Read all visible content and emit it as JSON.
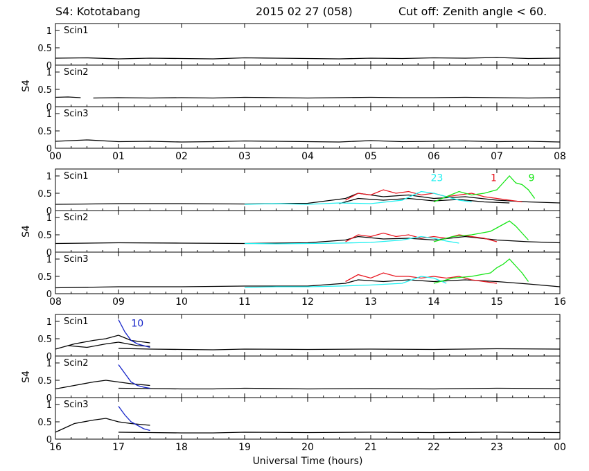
{
  "header": {
    "station": "S4: Kototabang",
    "date": "2015 02 27 (058)",
    "cutoff": "Cut off: Zenith angle < 60."
  },
  "chart_data": {
    "type": "line",
    "title": "S4: Kototabang",
    "ylabel": "S4",
    "xlabel": "Universal Time (hours)",
    "ylim": [
      0,
      1.2
    ],
    "yticks": [
      0,
      0.5,
      1
    ],
    "ytick_labels": [
      "0",
      "0.5",
      "1"
    ],
    "colors": {
      "black": "#000000",
      "red": "#e8141e",
      "green": "#14e614",
      "cyan": "#1ef0f0",
      "blue": "#1423c8"
    },
    "groups": [
      {
        "xrange": [
          0,
          8
        ],
        "xtick_labels": [
          "00",
          "01",
          "02",
          "03",
          "04",
          "05",
          "06",
          "07",
          "08"
        ],
        "panels": [
          {
            "name": "Scin1",
            "series": [
              {
                "color": "black",
                "x": [
                  0,
                  0.5,
                  1,
                  1.5,
                  2,
                  2.5,
                  3,
                  3.5,
                  4,
                  4.5,
                  5,
                  5.5,
                  6,
                  6.5,
                  7,
                  7.5,
                  8
                ],
                "y": [
                  0.2,
                  0.21,
                  0.18,
                  0.2,
                  0.19,
                  0.18,
                  0.21,
                  0.2,
                  0.19,
                  0.18,
                  0.2,
                  0.19,
                  0.21,
                  0.2,
                  0.22,
                  0.19,
                  0.2
                ]
              }
            ]
          },
          {
            "name": "Scin2",
            "series": [
              {
                "color": "black",
                "x": [
                  0,
                  0.2,
                  0.4
                ],
                "y": [
                  0.27,
                  0.28,
                  0.26
                ]
              },
              {
                "color": "black",
                "x": [
                  0.6,
                  1,
                  1.5,
                  2,
                  2.5,
                  3,
                  3.5,
                  4,
                  4.5,
                  5,
                  5.5,
                  6,
                  6.5,
                  7,
                  7.5,
                  8
                ],
                "y": [
                  0.25,
                  0.26,
                  0.25,
                  0.26,
                  0.25,
                  0.27,
                  0.26,
                  0.25,
                  0.26,
                  0.27,
                  0.26,
                  0.26,
                  0.27,
                  0.26,
                  0.25,
                  0.26
                ]
              }
            ]
          },
          {
            "name": "Scin3",
            "series": [
              {
                "color": "black",
                "x": [
                  0,
                  0.5,
                  1,
                  1.5,
                  2,
                  2.5,
                  3,
                  3.5,
                  4,
                  4.5,
                  5,
                  5.5,
                  6,
                  6.5,
                  7,
                  7.5,
                  8
                ],
                "y": [
                  0.2,
                  0.24,
                  0.19,
                  0.2,
                  0.18,
                  0.19,
                  0.21,
                  0.2,
                  0.19,
                  0.18,
                  0.22,
                  0.19,
                  0.2,
                  0.21,
                  0.19,
                  0.2,
                  0.18
                ]
              }
            ]
          }
        ],
        "annotations": []
      },
      {
        "xrange": [
          8,
          16
        ],
        "xtick_labels": [
          "08",
          "09",
          "10",
          "11",
          "12",
          "13",
          "14",
          "15",
          "16"
        ],
        "panels": [
          {
            "name": "Scin1",
            "series": [
              {
                "color": "black",
                "x": [
                  8,
                  9,
                  10,
                  11,
                  12,
                  12.6,
                  12.8,
                  13.2,
                  13.6,
                  14,
                  14.5,
                  15,
                  15.5,
                  16
                ],
                "y": [
                  0.18,
                  0.2,
                  0.2,
                  0.19,
                  0.21,
                  0.35,
                  0.5,
                  0.4,
                  0.45,
                  0.35,
                  0.4,
                  0.3,
                  0.25,
                  0.22
                ]
              },
              {
                "color": "black",
                "x": [
                  12.5,
                  12.8,
                  13.2,
                  13.6,
                  14,
                  14.4,
                  14.8,
                  15.2
                ],
                "y": [
                  0.2,
                  0.35,
                  0.3,
                  0.35,
                  0.28,
                  0.32,
                  0.25,
                  0.22
                ]
              },
              {
                "color": "red",
                "x": [
                  12.6,
                  12.8,
                  13,
                  13.2,
                  13.4,
                  13.6,
                  13.8,
                  14,
                  14.2,
                  14.4,
                  14.6,
                  14.8,
                  15,
                  15.2,
                  15.4
                ],
                "y": [
                  0.3,
                  0.5,
                  0.45,
                  0.6,
                  0.5,
                  0.55,
                  0.45,
                  0.5,
                  0.4,
                  0.45,
                  0.5,
                  0.4,
                  0.35,
                  0.3,
                  0.25
                ]
              },
              {
                "color": "cyan",
                "x": [
                  11,
                  11.5,
                  12,
                  12.5,
                  13,
                  13.5,
                  13.8,
                  14,
                  14.2,
                  14.4,
                  14.6
                ],
                "y": [
                  0.18,
                  0.2,
                  0.18,
                  0.22,
                  0.2,
                  0.3,
                  0.55,
                  0.5,
                  0.4,
                  0.3,
                  0.25
                ]
              },
              {
                "color": "green",
                "x": [
                  14,
                  14.2,
                  14.4,
                  14.6,
                  14.8,
                  15,
                  15.1,
                  15.2,
                  15.3,
                  15.4,
                  15.5,
                  15.6
                ],
                "y": [
                  0.25,
                  0.4,
                  0.55,
                  0.45,
                  0.5,
                  0.6,
                  0.8,
                  1.0,
                  0.8,
                  0.75,
                  0.6,
                  0.35
                ]
              }
            ]
          },
          {
            "name": "Scin2",
            "series": [
              {
                "color": "black",
                "x": [
                  8,
                  9,
                  10,
                  11,
                  12,
                  12.6,
                  12.8,
                  13.2,
                  13.6,
                  14,
                  14.5,
                  15,
                  15.5,
                  16
                ],
                "y": [
                  0.25,
                  0.27,
                  0.26,
                  0.25,
                  0.27,
                  0.35,
                  0.45,
                  0.38,
                  0.4,
                  0.35,
                  0.45,
                  0.35,
                  0.3,
                  0.27
                ]
              },
              {
                "color": "red",
                "x": [
                  12.6,
                  12.8,
                  13,
                  13.2,
                  13.4,
                  13.6,
                  13.8,
                  14,
                  14.2,
                  14.4,
                  14.6,
                  14.8,
                  15
                ],
                "y": [
                  0.3,
                  0.5,
                  0.45,
                  0.55,
                  0.45,
                  0.5,
                  0.4,
                  0.45,
                  0.4,
                  0.5,
                  0.45,
                  0.4,
                  0.3
                ]
              },
              {
                "color": "cyan",
                "x": [
                  11,
                  11.5,
                  12,
                  12.5,
                  13,
                  13.5,
                  13.8,
                  14,
                  14.2,
                  14.4
                ],
                "y": [
                  0.25,
                  0.24,
                  0.25,
                  0.26,
                  0.28,
                  0.35,
                  0.45,
                  0.4,
                  0.32,
                  0.26
                ]
              },
              {
                "color": "green",
                "x": [
                  14,
                  14.3,
                  14.6,
                  14.9,
                  15,
                  15.1,
                  15.2,
                  15.3,
                  15.4,
                  15.5
                ],
                "y": [
                  0.3,
                  0.45,
                  0.5,
                  0.6,
                  0.7,
                  0.8,
                  0.9,
                  0.75,
                  0.55,
                  0.35
                ]
              }
            ]
          },
          {
            "name": "Scin3",
            "series": [
              {
                "color": "black",
                "x": [
                  8,
                  9,
                  10,
                  11,
                  12,
                  12.6,
                  12.8,
                  13.2,
                  13.6,
                  14,
                  14.5,
                  15,
                  15.5,
                  16
                ],
                "y": [
                  0.17,
                  0.2,
                  0.2,
                  0.22,
                  0.22,
                  0.3,
                  0.4,
                  0.35,
                  0.4,
                  0.35,
                  0.4,
                  0.35,
                  0.28,
                  0.2
                ]
              },
              {
                "color": "red",
                "x": [
                  12.6,
                  12.8,
                  13,
                  13.2,
                  13.4,
                  13.6,
                  13.8,
                  14,
                  14.2,
                  14.4,
                  14.6,
                  14.8,
                  15
                ],
                "y": [
                  0.35,
                  0.55,
                  0.45,
                  0.6,
                  0.5,
                  0.5,
                  0.45,
                  0.5,
                  0.45,
                  0.5,
                  0.4,
                  0.35,
                  0.3
                ]
              },
              {
                "color": "cyan",
                "x": [
                  11,
                  11.5,
                  12,
                  12.5,
                  13,
                  13.5,
                  13.8,
                  14,
                  14.2
                ],
                "y": [
                  0.18,
                  0.2,
                  0.2,
                  0.22,
                  0.25,
                  0.3,
                  0.5,
                  0.45,
                  0.3
                ]
              },
              {
                "color": "green",
                "x": [
                  14,
                  14.3,
                  14.6,
                  14.9,
                  15,
                  15.1,
                  15.2,
                  15.3,
                  15.4,
                  15.5
                ],
                "y": [
                  0.3,
                  0.45,
                  0.5,
                  0.6,
                  0.75,
                  0.85,
                  1.0,
                  0.8,
                  0.6,
                  0.35
                ]
              }
            ]
          }
        ],
        "annotations": [
          {
            "text": "23",
            "color": "cyan",
            "x": 14.05,
            "y": 0.85
          },
          {
            "text": "1",
            "color": "red",
            "x": 14.95,
            "y": 0.85
          },
          {
            "text": "9",
            "color": "green",
            "x": 15.55,
            "y": 0.85
          }
        ]
      },
      {
        "xrange": [
          16,
          24
        ],
        "xtick_labels": [
          "16",
          "17",
          "18",
          "19",
          "20",
          "21",
          "22",
          "23",
          "00"
        ],
        "panels": [
          {
            "name": "Scin1",
            "series": [
              {
                "color": "black",
                "x": [
                  16,
                  16.3,
                  16.6,
                  16.8,
                  17,
                  17.2,
                  17.5
                ],
                "y": [
                  0.2,
                  0.35,
                  0.45,
                  0.5,
                  0.6,
                  0.45,
                  0.38
                ]
              },
              {
                "color": "black",
                "x": [
                  16.2,
                  16.5,
                  16.8,
                  17,
                  17.3,
                  17.5
                ],
                "y": [
                  0.3,
                  0.25,
                  0.35,
                  0.4,
                  0.3,
                  0.28
                ]
              },
              {
                "color": "black",
                "x": [
                  17,
                  17.5,
                  18,
                  18.5,
                  19,
                  20,
                  21,
                  22,
                  23,
                  24
                ],
                "y": [
                  0.22,
                  0.2,
                  0.19,
                  0.18,
                  0.2,
                  0.19,
                  0.2,
                  0.19,
                  0.21,
                  0.2
                ]
              },
              {
                "color": "blue",
                "x": [
                  17,
                  17.1,
                  17.2,
                  17.3,
                  17.4,
                  17.5
                ],
                "y": [
                  1.05,
                  0.7,
                  0.45,
                  0.35,
                  0.3,
                  0.25
                ]
              }
            ]
          },
          {
            "name": "Scin2",
            "series": [
              {
                "color": "black",
                "x": [
                  16,
                  16.3,
                  16.6,
                  16.8,
                  17,
                  17.2,
                  17.5
                ],
                "y": [
                  0.25,
                  0.35,
                  0.45,
                  0.5,
                  0.45,
                  0.4,
                  0.35
                ]
              },
              {
                "color": "black",
                "x": [
                  17,
                  17.5,
                  18,
                  18.5,
                  19,
                  20,
                  21,
                  22,
                  23,
                  24
                ],
                "y": [
                  0.27,
                  0.26,
                  0.25,
                  0.25,
                  0.27,
                  0.25,
                  0.26,
                  0.25,
                  0.27,
                  0.26
                ]
              },
              {
                "color": "blue",
                "x": [
                  17,
                  17.1,
                  17.2,
                  17.3,
                  17.4,
                  17.5
                ],
                "y": [
                  0.95,
                  0.7,
                  0.45,
                  0.35,
                  0.3,
                  0.27
                ]
              }
            ]
          },
          {
            "name": "Scin3",
            "series": [
              {
                "color": "black",
                "x": [
                  16,
                  16.3,
                  16.6,
                  16.8,
                  17,
                  17.2,
                  17.5
                ],
                "y": [
                  0.2,
                  0.45,
                  0.55,
                  0.6,
                  0.5,
                  0.45,
                  0.4
                ]
              },
              {
                "color": "black",
                "x": [
                  17,
                  17.5,
                  18,
                  18.5,
                  19,
                  20,
                  21,
                  22,
                  23,
                  24
                ],
                "y": [
                  0.2,
                  0.19,
                  0.18,
                  0.18,
                  0.2,
                  0.19,
                  0.2,
                  0.19,
                  0.2,
                  0.19
                ]
              },
              {
                "color": "blue",
                "x": [
                  17,
                  17.1,
                  17.2,
                  17.3,
                  17.4,
                  17.5
                ],
                "y": [
                  0.95,
                  0.7,
                  0.5,
                  0.4,
                  0.3,
                  0.25
                ]
              }
            ]
          }
        ],
        "annotations": [
          {
            "text": "10",
            "color": "blue",
            "x": 17.3,
            "y": 0.85
          }
        ]
      }
    ]
  }
}
